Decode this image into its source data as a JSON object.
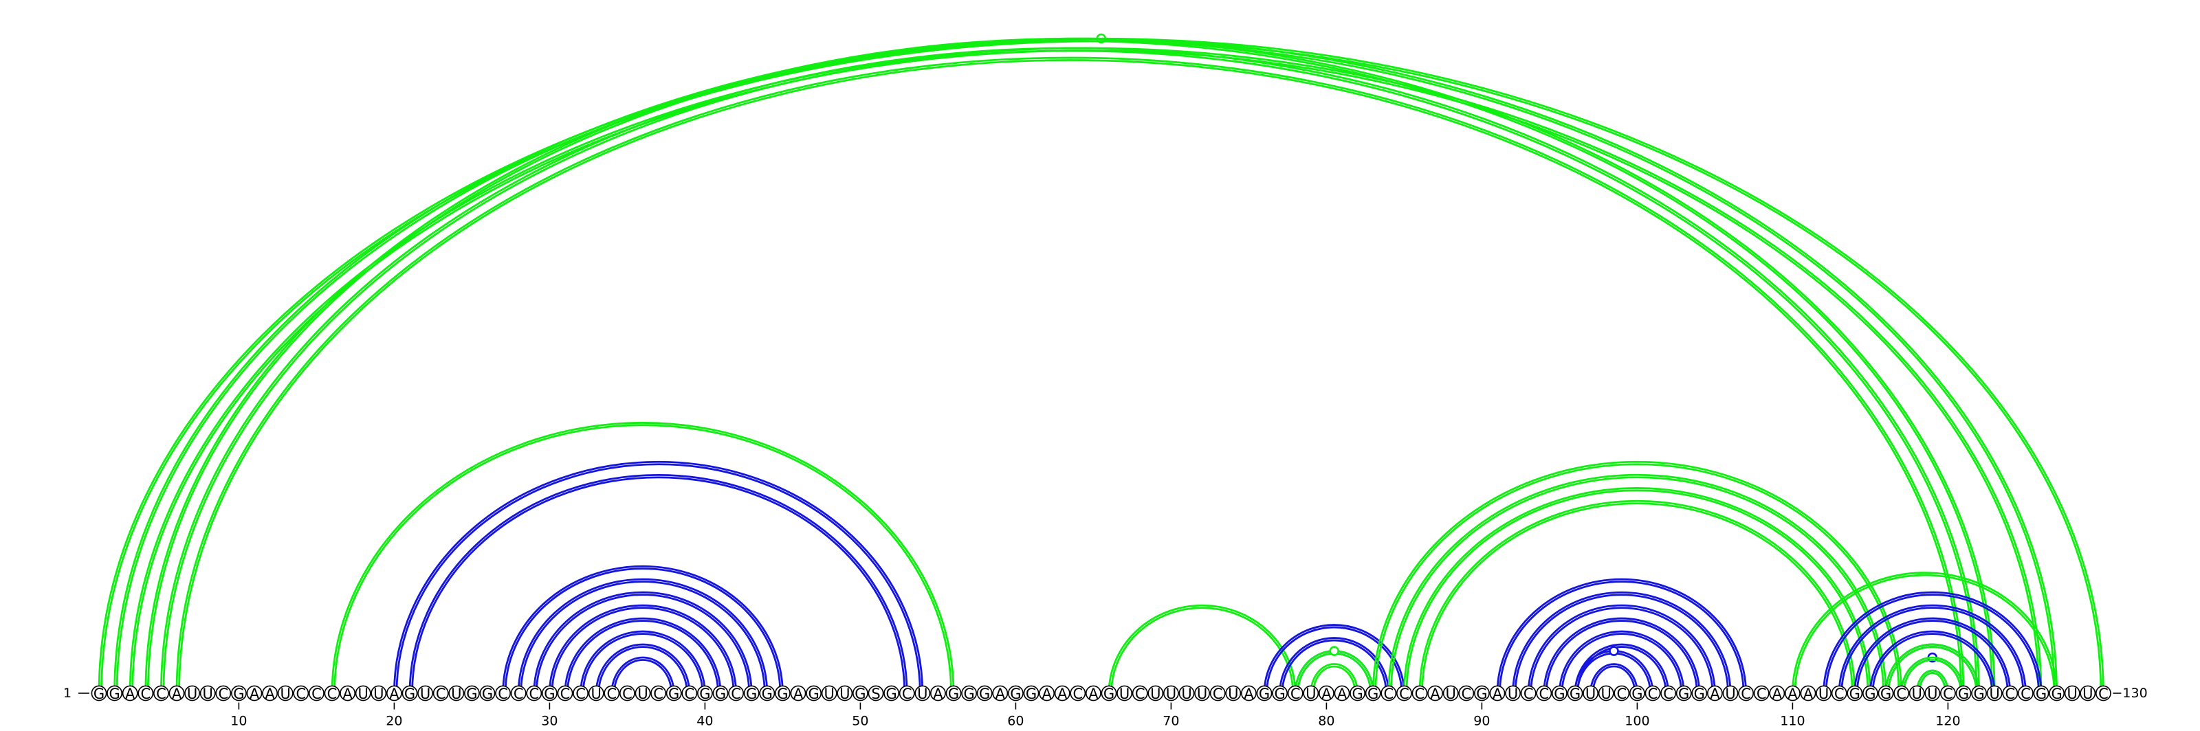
{
  "sequence": "GGACCAUUCGAAUCCCAUUAGUCUGGCCCGCCUCCUCGCGGCGGGAGUUGSGCUAGGGAGGAACAGUCUUUUCUAGGCUAAGGCCCAUCGAUCCGGUUCGCCGGAUCCAAAUCGGGCUUCGGUCCGGUUC",
  "start_label": "1",
  "end_label": "130",
  "ticks": [
    "10",
    "20",
    "30",
    "40",
    "50",
    "60",
    "70",
    "80",
    "90",
    "100",
    "110",
    "120"
  ],
  "colors": {
    "green": "#11ee11",
    "blue": "#1515e0"
  },
  "arc_groups": [
    {
      "color": "green",
      "style": "double",
      "i": 1,
      "j": 130,
      "n": 1,
      "marker": true
    },
    {
      "color": "green",
      "style": "double",
      "i": 2,
      "j": 127,
      "n": 2
    },
    {
      "color": "green",
      "style": "double",
      "i": 4,
      "j": 123,
      "n": 3
    },
    {
      "color": "green",
      "style": "double",
      "i": 16,
      "j": 56,
      "n": 1
    },
    {
      "color": "blue",
      "style": "double",
      "i": 20,
      "j": 54,
      "n": 2
    },
    {
      "color": "blue",
      "style": "double",
      "i": 27,
      "j": 45,
      "n": 8
    },
    {
      "color": "green",
      "style": "double",
      "i": 66,
      "j": 78,
      "n": 1
    },
    {
      "color": "blue",
      "style": "double",
      "i": 76,
      "j": 85,
      "n": 3
    },
    {
      "color": "green",
      "style": "double",
      "i": 78,
      "j": 83,
      "n": 2,
      "marker": true
    },
    {
      "color": "green",
      "style": "double",
      "i": 83,
      "j": 117,
      "n": 4
    },
    {
      "color": "blue",
      "style": "double",
      "i": 91,
      "j": 107,
      "n": 6
    },
    {
      "color": "blue",
      "style": "double",
      "i": 96,
      "j": 101,
      "n": 2,
      "marker": true
    },
    {
      "color": "green",
      "style": "double",
      "i": 110,
      "j": 127,
      "n": 1
    },
    {
      "color": "blue",
      "style": "double",
      "i": 112,
      "j": 126,
      "n": 5
    },
    {
      "color": "blue",
      "style": "double",
      "i": 117,
      "j": 121,
      "n": 3,
      "marker": true
    },
    {
      "color": "green",
      "style": "double",
      "i": 116,
      "j": 122,
      "n": 3
    }
  ]
}
